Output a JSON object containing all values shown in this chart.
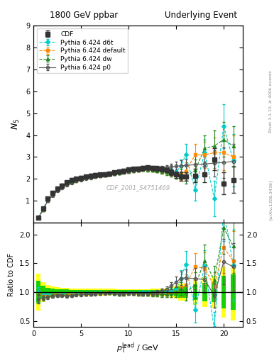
{
  "title_left": "1800 GeV ppbar",
  "title_right": "Underlying Event",
  "ylabel_main": "$N_5$",
  "ylabel_ratio": "Ratio to CDF",
  "xlabel": "$p_T^\\mathrm{lead}$ / GeV",
  "right_label": "Rivet 3.1.10, ≥ 400k events",
  "watermark": "CDF_2001_S4751469",
  "arxiv_label": "[arXiv:1306.3436]",
  "cdf_x": [
    0.5,
    1.0,
    1.5,
    2.0,
    2.5,
    3.0,
    3.5,
    4.0,
    4.5,
    5.0,
    5.5,
    6.0,
    6.5,
    7.0,
    7.5,
    8.0,
    8.5,
    9.0,
    9.5,
    10.0,
    10.5,
    11.0,
    11.5,
    12.0,
    12.5,
    13.0,
    13.5,
    14.0,
    14.5,
    15.0,
    15.5,
    16.0,
    17.0,
    18.0,
    19.0,
    20.0,
    21.0
  ],
  "cdf_y": [
    0.25,
    0.65,
    1.1,
    1.35,
    1.55,
    1.7,
    1.85,
    1.95,
    2.0,
    2.05,
    2.1,
    2.15,
    2.18,
    2.2,
    2.22,
    2.24,
    2.3,
    2.35,
    2.38,
    2.42,
    2.45,
    2.48,
    2.5,
    2.52,
    2.5,
    2.48,
    2.45,
    2.4,
    2.3,
    2.2,
    2.1,
    2.1,
    2.15,
    2.2,
    2.9,
    1.8,
    1.95
  ],
  "cdf_yerr": [
    0.05,
    0.07,
    0.08,
    0.08,
    0.08,
    0.08,
    0.08,
    0.08,
    0.08,
    0.08,
    0.08,
    0.08,
    0.08,
    0.08,
    0.08,
    0.08,
    0.08,
    0.08,
    0.08,
    0.08,
    0.08,
    0.08,
    0.08,
    0.08,
    0.1,
    0.1,
    0.1,
    0.1,
    0.12,
    0.15,
    0.2,
    0.2,
    0.3,
    0.35,
    0.5,
    0.5,
    0.6
  ],
  "d6t_x": [
    0.5,
    1.0,
    1.5,
    2.0,
    2.5,
    3.0,
    3.5,
    4.0,
    4.5,
    5.0,
    5.5,
    6.0,
    6.5,
    7.0,
    7.5,
    8.0,
    8.5,
    9.0,
    9.5,
    10.0,
    10.5,
    11.0,
    11.5,
    12.0,
    12.5,
    13.0,
    13.5,
    14.0,
    14.5,
    15.0,
    15.5,
    16.0,
    17.0,
    18.0,
    19.0,
    20.0,
    21.0
  ],
  "d6t_y": [
    0.25,
    0.62,
    1.05,
    1.3,
    1.5,
    1.65,
    1.78,
    1.88,
    1.95,
    2.0,
    2.05,
    2.1,
    2.15,
    2.18,
    2.2,
    2.22,
    2.25,
    2.28,
    2.32,
    2.38,
    2.42,
    2.45,
    2.5,
    2.52,
    2.48,
    2.45,
    2.42,
    2.4,
    2.35,
    2.3,
    2.6,
    3.1,
    1.5,
    3.2,
    1.1,
    4.4,
    2.85
  ],
  "d6t_yerr": [
    0.02,
    0.03,
    0.03,
    0.03,
    0.03,
    0.03,
    0.03,
    0.03,
    0.03,
    0.03,
    0.03,
    0.03,
    0.03,
    0.03,
    0.03,
    0.03,
    0.03,
    0.03,
    0.03,
    0.03,
    0.03,
    0.03,
    0.04,
    0.05,
    0.06,
    0.07,
    0.08,
    0.1,
    0.12,
    0.15,
    0.3,
    0.5,
    0.5,
    0.6,
    0.8,
    1.0,
    1.2
  ],
  "default_x": [
    0.5,
    1.0,
    1.5,
    2.0,
    2.5,
    3.0,
    3.5,
    4.0,
    4.5,
    5.0,
    5.5,
    6.0,
    6.5,
    7.0,
    7.5,
    8.0,
    8.5,
    9.0,
    9.5,
    10.0,
    10.5,
    11.0,
    11.5,
    12.0,
    12.5,
    13.0,
    13.5,
    14.0,
    14.5,
    15.0,
    15.5,
    16.0,
    17.0,
    18.0,
    19.0,
    20.0,
    21.0
  ],
  "default_y": [
    0.24,
    0.6,
    1.02,
    1.28,
    1.48,
    1.62,
    1.75,
    1.85,
    1.92,
    1.98,
    2.03,
    2.08,
    2.12,
    2.15,
    2.18,
    2.2,
    2.23,
    2.26,
    2.3,
    2.35,
    2.38,
    2.4,
    2.42,
    2.42,
    2.4,
    2.38,
    2.35,
    2.3,
    2.25,
    2.2,
    2.25,
    2.35,
    3.1,
    3.1,
    3.2,
    3.2,
    3.0
  ],
  "default_yerr": [
    0.02,
    0.03,
    0.03,
    0.03,
    0.03,
    0.03,
    0.03,
    0.03,
    0.03,
    0.03,
    0.03,
    0.03,
    0.03,
    0.03,
    0.03,
    0.03,
    0.03,
    0.03,
    0.03,
    0.03,
    0.04,
    0.05,
    0.06,
    0.07,
    0.08,
    0.09,
    0.1,
    0.12,
    0.15,
    0.2,
    0.3,
    0.4,
    0.5,
    0.6,
    0.7,
    0.8,
    1.0
  ],
  "dw_x": [
    0.5,
    1.0,
    1.5,
    2.0,
    2.5,
    3.0,
    3.5,
    4.0,
    4.5,
    5.0,
    5.5,
    6.0,
    6.5,
    7.0,
    7.5,
    8.0,
    8.5,
    9.0,
    9.5,
    10.0,
    10.5,
    11.0,
    11.5,
    12.0,
    12.5,
    13.0,
    13.5,
    14.0,
    14.5,
    15.0,
    15.5,
    16.0,
    17.0,
    18.0,
    19.0,
    20.0,
    21.0
  ],
  "dw_y": [
    0.24,
    0.6,
    1.02,
    1.28,
    1.48,
    1.62,
    1.75,
    1.85,
    1.92,
    1.98,
    2.03,
    2.08,
    2.12,
    2.15,
    2.18,
    2.2,
    2.23,
    2.26,
    2.3,
    2.35,
    2.38,
    2.4,
    2.42,
    2.42,
    2.4,
    2.38,
    2.35,
    2.3,
    2.25,
    2.2,
    2.22,
    2.1,
    2.4,
    3.4,
    3.5,
    3.8,
    3.5
  ],
  "dw_yerr": [
    0.02,
    0.03,
    0.03,
    0.03,
    0.03,
    0.03,
    0.03,
    0.03,
    0.03,
    0.03,
    0.03,
    0.03,
    0.03,
    0.03,
    0.03,
    0.03,
    0.03,
    0.03,
    0.03,
    0.03,
    0.04,
    0.05,
    0.06,
    0.07,
    0.08,
    0.09,
    0.1,
    0.12,
    0.15,
    0.2,
    0.25,
    0.3,
    0.5,
    0.6,
    0.7,
    0.8,
    0.9
  ],
  "p0_x": [
    0.5,
    1.0,
    1.5,
    2.0,
    2.5,
    3.0,
    3.5,
    4.0,
    4.5,
    5.0,
    5.5,
    6.0,
    6.5,
    7.0,
    7.5,
    8.0,
    8.5,
    9.0,
    9.5,
    10.0,
    10.5,
    11.0,
    11.5,
    12.0,
    12.5,
    13.0,
    13.5,
    14.0,
    14.5,
    15.0,
    15.5,
    16.0,
    17.0,
    18.0,
    19.0,
    20.0,
    21.0
  ],
  "p0_y": [
    0.22,
    0.58,
    1.0,
    1.25,
    1.45,
    1.6,
    1.72,
    1.82,
    1.9,
    1.96,
    2.01,
    2.06,
    2.1,
    2.14,
    2.17,
    2.2,
    2.23,
    2.27,
    2.31,
    2.35,
    2.38,
    2.41,
    2.43,
    2.45,
    2.46,
    2.48,
    2.5,
    2.52,
    2.55,
    2.58,
    2.6,
    2.62,
    2.65,
    2.68,
    2.72,
    2.75,
    2.8
  ],
  "p0_yerr": [
    0.02,
    0.03,
    0.03,
    0.03,
    0.03,
    0.03,
    0.03,
    0.03,
    0.03,
    0.03,
    0.03,
    0.03,
    0.03,
    0.03,
    0.03,
    0.03,
    0.03,
    0.03,
    0.03,
    0.03,
    0.04,
    0.05,
    0.06,
    0.07,
    0.08,
    0.09,
    0.1,
    0.12,
    0.15,
    0.2,
    0.25,
    0.3,
    0.4,
    0.5,
    0.6,
    0.7,
    0.8
  ],
  "color_cdf": "#333333",
  "color_d6t": "#00cccc",
  "color_default": "#ff8c00",
  "color_dw": "#228b22",
  "color_p0": "#555555",
  "color_band_yellow": "#ffff00",
  "color_band_green": "#00cc00",
  "xlim": [
    0,
    22
  ],
  "ylim_main": [
    0,
    9
  ],
  "ylim_ratio": [
    0.4,
    2.2
  ],
  "yticks_main": [
    1,
    2,
    3,
    4,
    5,
    6,
    7,
    8,
    9
  ],
  "yticks_ratio": [
    0.5,
    1.0,
    1.5,
    2.0
  ],
  "xticks": [
    0,
    5,
    10,
    15,
    20
  ]
}
